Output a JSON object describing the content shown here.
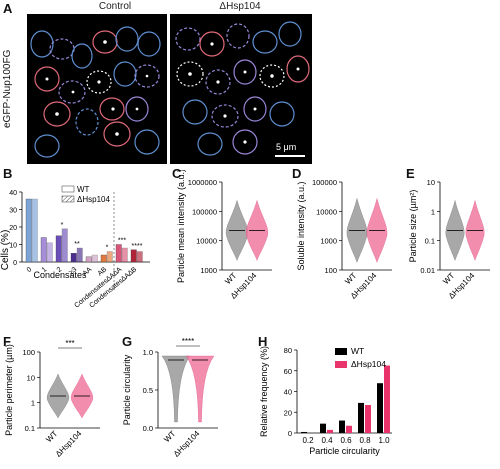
{
  "panels": {
    "A": {
      "label": "A",
      "titles": [
        "Control",
        "ΔHsp104"
      ],
      "ylabel": "eGFP-Nup100FG",
      "scalebar": "5 μm"
    }
  },
  "chart_data": [
    {
      "id": "B",
      "label": "B",
      "type": "bar",
      "ylabel": "Cells (%)",
      "xlabel": "Condensates",
      "ylim": [
        0,
        40
      ],
      "yticks": [
        0,
        10,
        20,
        30,
        40
      ],
      "categories": [
        "0",
        "1",
        "2",
        "≥3",
        "AA",
        "AB",
        "Condensates∆A∆A",
        "Condensates∆A∆B"
      ],
      "series": [
        {
          "name": "WT",
          "values": [
            36,
            14,
            15,
            5,
            3,
            4,
            10,
            7
          ]
        },
        {
          "name": "ΔHsp104",
          "values": [
            36,
            11,
            19,
            8,
            4,
            6,
            8,
            6
          ]
        }
      ],
      "colors": [
        "#7ba3d6",
        "#a58dd8",
        "#6b4fb8",
        "#4b2d8f",
        "#cfa0c2",
        "#e07a3f",
        "#d9557a",
        "#b0243a"
      ],
      "significance": [
        "*",
        "**",
        "*",
        "***",
        "****"
      ],
      "legend": [
        "WT",
        "ΔHsp104"
      ]
    },
    {
      "id": "C",
      "label": "C",
      "type": "violin",
      "ylabel": "Particle mean intensity (a.u.)",
      "yscale": "log",
      "yticks": [
        "1000000",
        "100000",
        "10000",
        "1000"
      ],
      "categories": [
        "WT",
        "ΔHsp104"
      ],
      "median": [
        30000,
        35000
      ],
      "range": [
        [
          4000,
          250000
        ],
        [
          5000,
          280000
        ]
      ]
    },
    {
      "id": "D",
      "label": "D",
      "type": "violin",
      "ylabel": "Soluble intensity (a.u.)",
      "yscale": "log",
      "yticks": [
        "100000",
        "10000",
        "1000",
        "100"
      ],
      "categories": [
        "WT",
        "ΔHsp104"
      ],
      "median": [
        2000,
        2000
      ],
      "range": [
        [
          200,
          60000
        ],
        [
          150,
          70000
        ]
      ]
    },
    {
      "id": "E",
      "label": "E",
      "type": "violin",
      "ylabel": "Particle size (µm²)",
      "yscale": "log",
      "yticks": [
        "10",
        "1",
        "0.1",
        "0.01"
      ],
      "categories": [
        "WT",
        "ΔHsp104"
      ],
      "median": [
        0.4,
        0.4
      ],
      "range": [
        [
          0.03,
          8
        ],
        [
          0.05,
          6
        ]
      ]
    },
    {
      "id": "F",
      "label": "F",
      "type": "violin",
      "ylabel": "Particle perimeter (µm)",
      "yscale": "log",
      "yticks": [
        "100",
        "10",
        "1",
        "0.1"
      ],
      "categories": [
        "WT",
        "ΔHsp104"
      ],
      "median": [
        2,
        2
      ],
      "range": [
        [
          0.6,
          30
        ],
        [
          0.6,
          25
        ]
      ],
      "significance": "***"
    },
    {
      "id": "G",
      "label": "G",
      "type": "violin",
      "ylabel": "Particle circularity",
      "yticks": [
        "1.0",
        "0.5",
        "0.0"
      ],
      "ylim": [
        0,
        1
      ],
      "categories": [
        "WT",
        "ΔHsp104"
      ],
      "median": [
        0.95,
        0.95
      ],
      "significance": "****"
    },
    {
      "id": "H",
      "label": "H",
      "type": "bar",
      "ylabel": "Relative frequency (%)",
      "xlabel": "Particle circularity",
      "ylim": [
        0,
        80
      ],
      "yticks": [
        0,
        20,
        40,
        60,
        80
      ],
      "categories": [
        "0.2",
        "0.4",
        "0.6",
        "0.8",
        "1.0"
      ],
      "series": [
        {
          "name": "WT",
          "color": "#000000",
          "values": [
            1,
            9,
            12,
            29,
            48
          ]
        },
        {
          "name": "ΔHsp104",
          "color": "#e8336b",
          "values": [
            0,
            3,
            7,
            27,
            65
          ]
        }
      ],
      "legend_position": "top-right"
    }
  ]
}
